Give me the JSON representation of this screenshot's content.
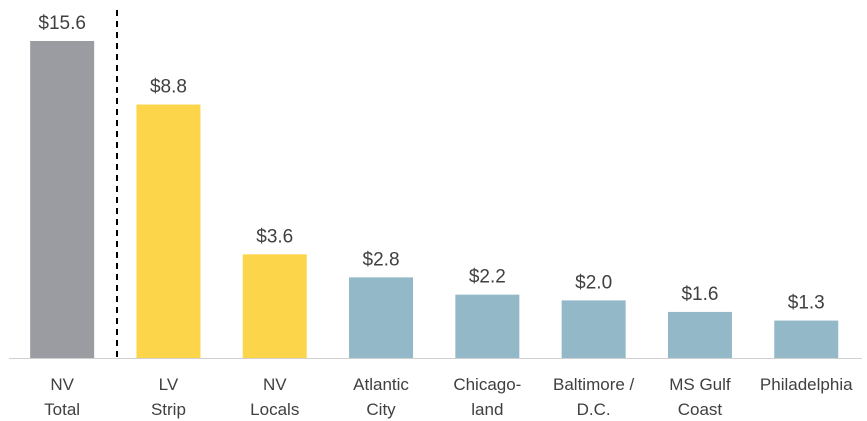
{
  "chart_data": {
    "type": "bar",
    "categories": [
      "NV\nTotal",
      "LV\nStrip",
      "NV\nLocals",
      "Atlantic\nCity",
      "Chicago-\nland",
      "Baltimore /\nD.C.",
      "MS Gulf\nCoast",
      "Philadelphia"
    ],
    "values": [
      15.6,
      8.8,
      3.6,
      2.8,
      2.2,
      2.0,
      1.6,
      1.3
    ],
    "value_labels": [
      "$15.6",
      "$8.8",
      "$3.6",
      "$2.8",
      "$2.2",
      "$2.0",
      "$1.6",
      "$1.3"
    ],
    "colors": [
      "#9b9ca1",
      "#fdd54a",
      "#fdd54a",
      "#93b8c8",
      "#93b8c8",
      "#93b8c8",
      "#93b8c8",
      "#93b8c8"
    ]
  }
}
